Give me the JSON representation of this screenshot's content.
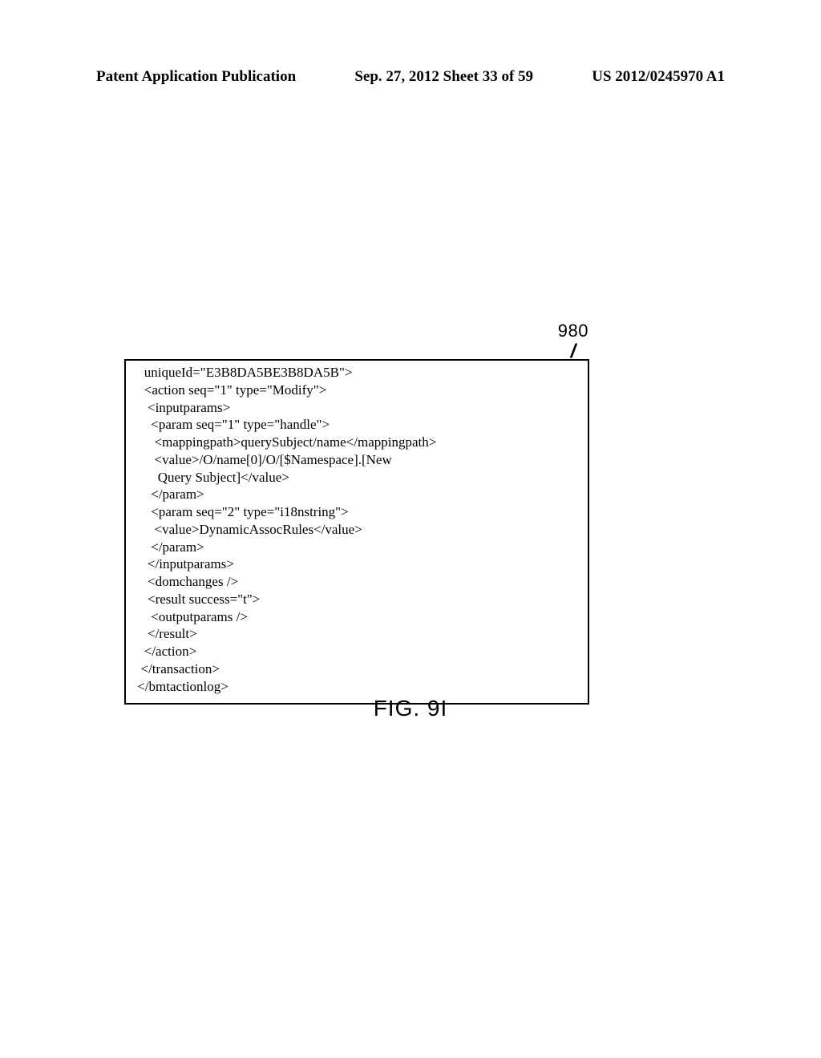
{
  "header": {
    "left": "Patent Application Publication",
    "center": "Sep. 27, 2012  Sheet 33 of 59",
    "right": "US 2012/0245970 A1"
  },
  "callout": {
    "label": "980",
    "tick": "/"
  },
  "code": {
    "lines": [
      "   uniqueId=\"E3B8DA5BE3B8DA5B\">",
      "   <action seq=\"1\" type=\"Modify\">",
      "    <inputparams>",
      "     <param seq=\"1\" type=\"handle\">",
      "      <mappingpath>querySubject/name</mappingpath>",
      "      <value>/O/name[0]/O/[$Namespace].[New",
      "       Query Subject]</value>",
      "     </param>",
      "     <param seq=\"2\" type=\"i18nstring\">",
      "      <value>DynamicAssocRules</value>",
      "     </param>",
      "    </inputparams>",
      "    <domchanges />",
      "    <result success=\"t\">",
      "     <outputparams />",
      "    </result>",
      "   </action>",
      "  </transaction>",
      " </bmtactionlog>"
    ]
  },
  "figure": {
    "caption": "FIG. 9I"
  }
}
